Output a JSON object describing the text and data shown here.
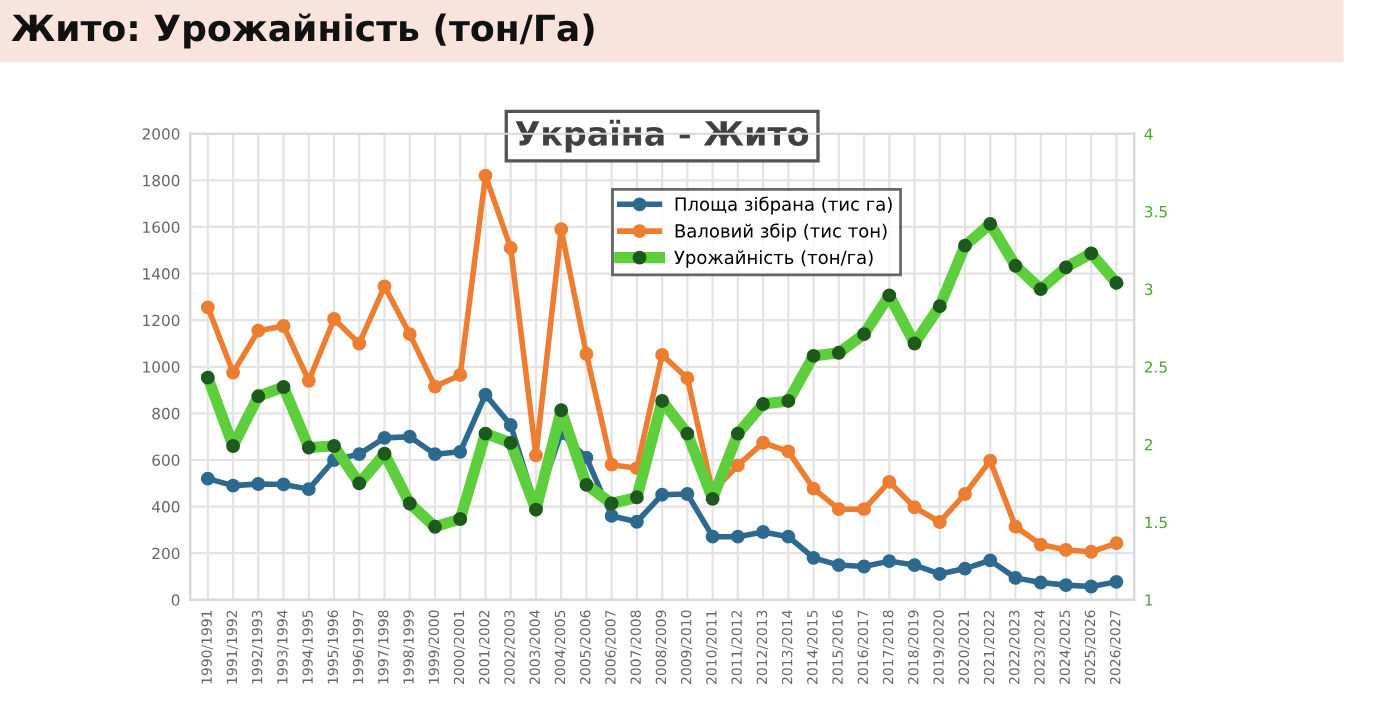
{
  "chart_data": {
    "type": "line",
    "title": "Жито: Урожайність (тон/Га)",
    "subtitle": "Україна - Жито",
    "categories": [
      "1990/1991",
      "1991/1992",
      "1992/1993",
      "1993/1994",
      "1994/1995",
      "1995/1996",
      "1996/1997",
      "1997/1998",
      "1998/1999",
      "1999/2000",
      "2000/2001",
      "2001/2002",
      "2002/2003",
      "2003/2004",
      "2004/2005",
      "2005/2006",
      "2006/2007",
      "2007/2008",
      "2008/2009",
      "2009/2010",
      "2010/2011",
      "2011/2012",
      "2012/2013",
      "2013/2014",
      "2014/2015",
      "2015/2016",
      "2016/2017",
      "2017/2018",
      "2018/2019",
      "2019/2020",
      "2020/2021",
      "2021/2022",
      "2022/2023",
      "2023/2024",
      "2024/2025",
      "2025/2026",
      "2026/2027"
    ],
    "series": [
      {
        "name": "Площа зібрана (тис га)",
        "color": "#2e6a8f",
        "values": [
          520,
          490,
          497,
          495,
          475,
          600,
          625,
          695,
          700,
          625,
          635,
          880,
          750,
          400,
          715,
          610,
          360,
          335,
          451,
          454,
          271,
          271,
          291,
          271,
          180,
          149,
          143,
          166,
          149,
          111,
          134,
          169,
          94,
          74,
          63,
          57,
          77
        ]
      },
      {
        "name": "Валовий збір (тис тон)",
        "color": "#ed7d31",
        "values": [
          1255,
          975,
          1155,
          1175,
          940,
          1205,
          1100,
          1345,
          1140,
          915,
          965,
          1820,
          1510,
          620,
          1590,
          1055,
          580,
          565,
          1051,
          951,
          463,
          577,
          674,
          637,
          477,
          389,
          389,
          506,
          397,
          334,
          454,
          597,
          314,
          237,
          214,
          206,
          243
        ]
      },
      {
        "name": "Урожайність (тон/га)",
        "color": "#5ecf3c",
        "axis": "y2",
        "values": [
          2.43,
          1.99,
          2.31,
          2.37,
          1.98,
          1.99,
          1.75,
          1.94,
          1.62,
          1.47,
          1.52,
          2.07,
          2.01,
          1.58,
          2.22,
          1.74,
          1.62,
          1.66,
          2.28,
          2.07,
          1.65,
          2.07,
          2.26,
          2.28,
          2.57,
          2.59,
          2.71,
          2.96,
          2.65,
          2.89,
          3.28,
          3.42,
          3.15,
          3.0,
          3.14,
          3.23,
          3.04
        ]
      }
    ],
    "ylim": [
      0,
      2000
    ],
    "yticks": [
      0,
      200,
      400,
      600,
      800,
      1000,
      1200,
      1400,
      1600,
      1800,
      2000
    ],
    "y2lim": [
      1,
      4
    ],
    "y2ticks": [
      1,
      1.5,
      2,
      2.5,
      3,
      3.5,
      4
    ],
    "grid": true,
    "legend": "top",
    "marker": "circle",
    "line_style": "solid"
  }
}
